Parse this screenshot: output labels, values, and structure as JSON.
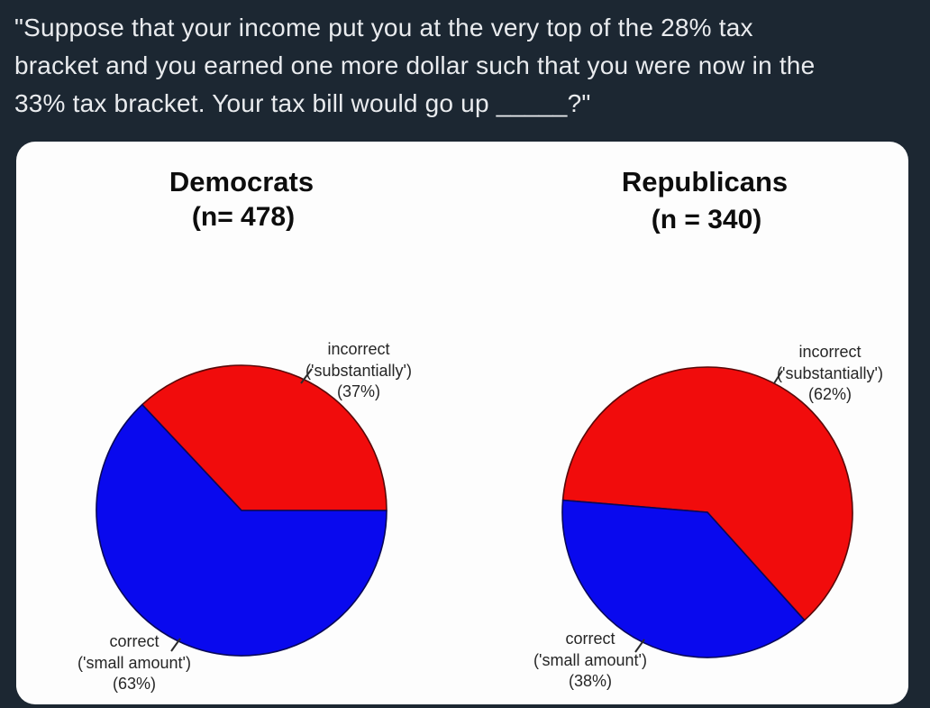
{
  "question": {
    "lines": [
      "\"Suppose that your income put you at the very top of the 28% tax",
      "bracket and you earned one more dollar such that you were now in the",
      "33% tax bracket. Your tax bill would go up _____?\""
    ]
  },
  "colors": {
    "background": "#1c2732",
    "card": "#fdfdfd",
    "incorrect_red": "#f10c0c",
    "correct_blue": "#0909ee",
    "question_text": "#e9ebee",
    "chart_text": "#262626"
  },
  "chart_data": [
    {
      "type": "pie",
      "title": "Democrats",
      "n_label": "(n= 478)",
      "sample_size": 478,
      "legend_position": "none",
      "slices": [
        {
          "label": "incorrect",
          "quote_label": "('substantially')",
          "pct": 37,
          "pct_label": "(37%)",
          "color": "#f10c0c",
          "edge_color": "#5a0808",
          "start_deg": 0
        },
        {
          "label": "correct",
          "quote_label": "('small amount')",
          "pct": 63,
          "pct_label": "(63%)",
          "color": "#0909ee",
          "edge_color": "#08085a",
          "start_deg": 133.2
        }
      ]
    },
    {
      "type": "pie",
      "title": "Republicans",
      "n_label": "(n = 340)",
      "sample_size": 340,
      "legend_position": "none",
      "slices": [
        {
          "label": "incorrect",
          "quote_label": "('substantially')",
          "pct": 62,
          "pct_label": "(62%)",
          "color": "#f10c0c",
          "edge_color": "#5a0808",
          "start_deg": -48
        },
        {
          "label": "correct",
          "quote_label": "('small amount')",
          "pct": 38,
          "pct_label": "(38%)",
          "color": "#0909ee",
          "edge_color": "#08085a",
          "start_deg": 175.2
        }
      ]
    }
  ]
}
